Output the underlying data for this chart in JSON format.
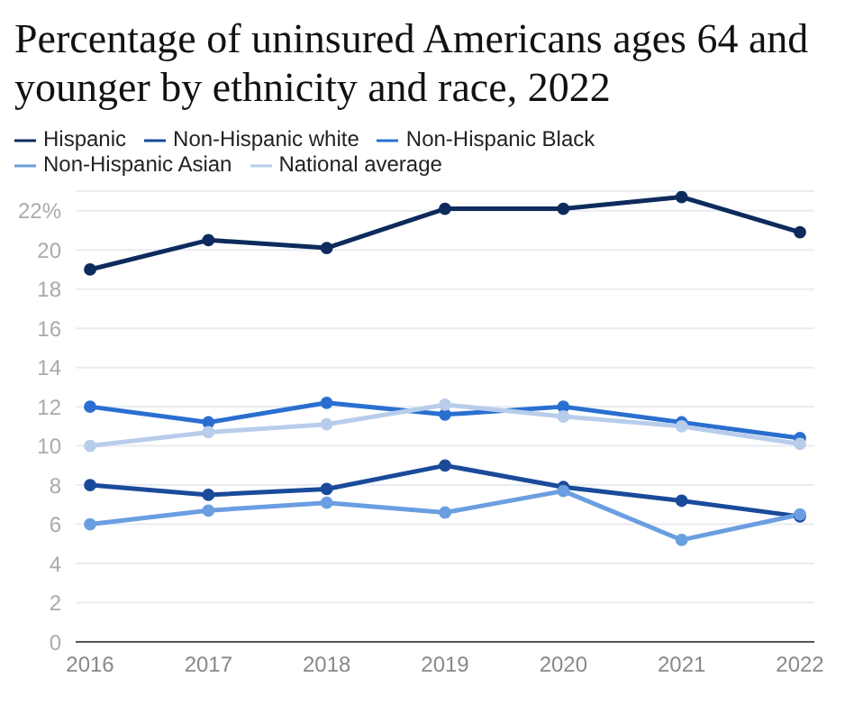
{
  "chart_data": {
    "type": "line",
    "title": "Percentage of uninsured Americans ages 64 and younger by ethnicity and race, 2022",
    "categories": [
      "2016",
      "2017",
      "2018",
      "2019",
      "2020",
      "2021",
      "2022"
    ],
    "series": [
      {
        "name": "Hispanic",
        "color": "#0d2b5c",
        "values": [
          19,
          20.5,
          20.1,
          22.1,
          22.1,
          22.7,
          20.9
        ]
      },
      {
        "name": "Non-Hispanic white",
        "color": "#1a4a9a",
        "values": [
          8,
          7.5,
          7.8,
          9,
          7.9,
          7.2,
          6.4
        ]
      },
      {
        "name": "Non-Hispanic Black",
        "color": "#2a6fd0",
        "values": [
          12,
          11.2,
          12.2,
          11.6,
          12,
          11.2,
          10.4
        ]
      },
      {
        "name": "Non-Hispanic Asian",
        "color": "#6a9ee0",
        "values": [
          6,
          6.7,
          7.1,
          6.6,
          7.7,
          5.2,
          6.5
        ]
      },
      {
        "name": "National average",
        "color": "#b8cdeb",
        "values": [
          10,
          10.7,
          11.1,
          12.1,
          11.5,
          11,
          10.1
        ]
      }
    ],
    "ylim": [
      0,
      23
    ],
    "yticks": [
      0,
      2,
      4,
      6,
      8,
      10,
      12,
      14,
      16,
      18,
      20,
      {
        "value": 22,
        "label": "22%"
      }
    ],
    "grid": "y",
    "legend": "top",
    "marker": "circle",
    "line_style": "solid"
  }
}
